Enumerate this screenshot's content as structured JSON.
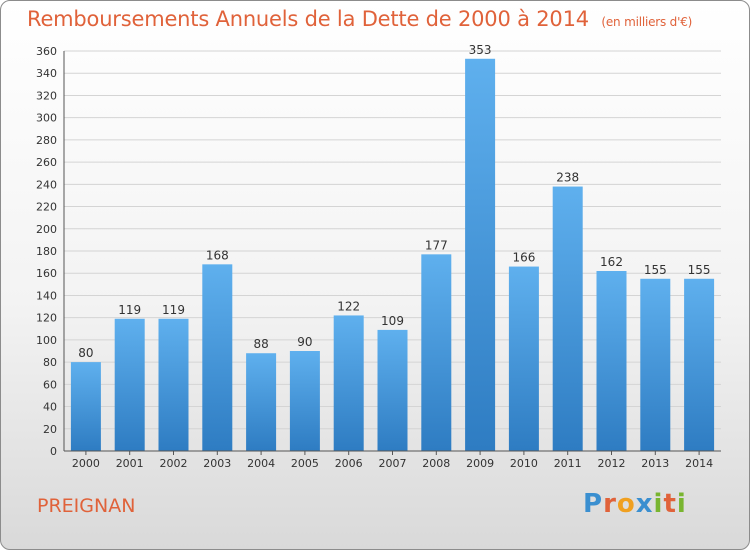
{
  "chart_data": {
    "type": "bar",
    "title": "Remboursements Annuels de la Dette de 2000 à 2014",
    "subtitle": "(en milliers d'€)",
    "categories": [
      "2000",
      "2001",
      "2002",
      "2003",
      "2004",
      "2005",
      "2006",
      "2007",
      "2008",
      "2009",
      "2010",
      "2011",
      "2012",
      "2013",
      "2014"
    ],
    "values": [
      80,
      119,
      119,
      168,
      88,
      90,
      122,
      109,
      177,
      353,
      166,
      238,
      162,
      155,
      155
    ],
    "ylim": [
      0,
      360
    ],
    "ytick_step": 20,
    "grid": true,
    "bar_color": "#4a9ee0"
  },
  "commune": "PREIGNAN",
  "logo": {
    "letters": [
      "P",
      "r",
      "o",
      "x",
      "i",
      "t",
      "i"
    ],
    "colors": [
      "#3a8fd0",
      "#e0623a",
      "#f0a020",
      "#3a8fd0",
      "#79b530",
      "#e0623a",
      "#79b530"
    ]
  }
}
